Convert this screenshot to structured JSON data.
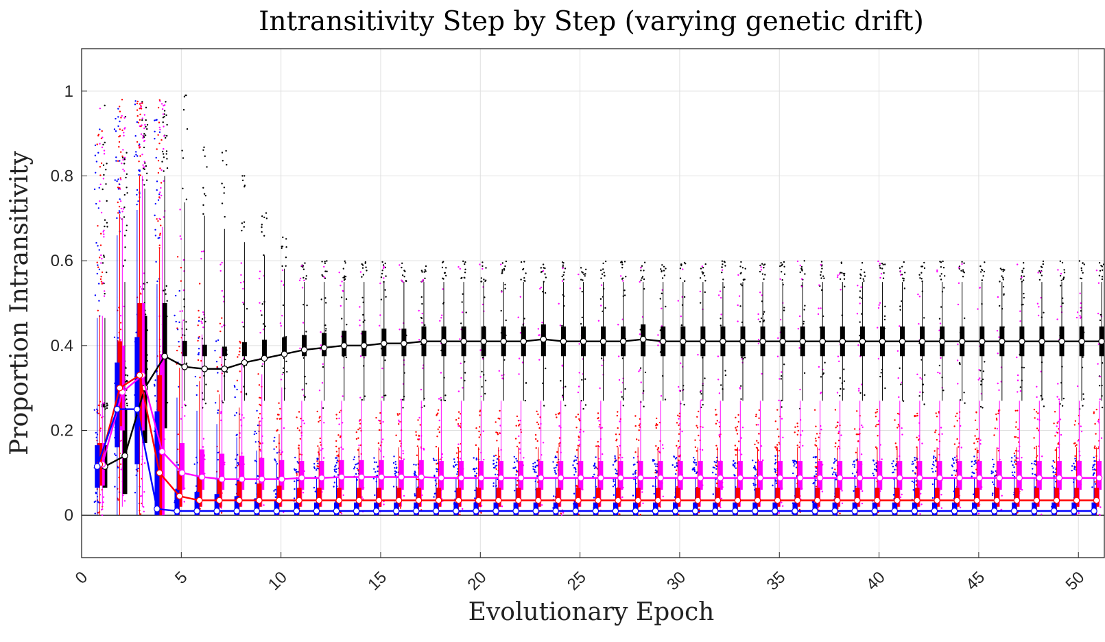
{
  "chart_data": {
    "type": "box",
    "title": "Intransitivity Step by Step (varying genetic drift)",
    "xlabel": "Evolutionary Epoch",
    "ylabel": "Proportion Intransitivity",
    "xlim": [
      0,
      51.3
    ],
    "ylim": [
      -0.1,
      1.1
    ],
    "xticks": [
      0,
      5,
      10,
      15,
      20,
      25,
      30,
      35,
      40,
      45,
      50
    ],
    "yticks": [
      0,
      0.2,
      0.4,
      0.6,
      0.8,
      1
    ],
    "grid": true,
    "legend": "none",
    "colors": {
      "black": "#000000",
      "magenta": "#ff00ff",
      "red": "#ff0000",
      "blue": "#0000ff",
      "grid": "#dfdfdf"
    },
    "series": [
      {
        "color": "#000000",
        "offset": 0.35,
        "x": [
          1,
          2,
          3,
          4,
          5,
          6,
          7,
          8,
          9,
          10,
          11,
          12,
          13,
          14,
          15,
          16,
          17,
          18,
          19,
          20,
          21,
          22,
          23,
          24,
          25,
          26,
          27,
          28,
          29,
          30,
          31,
          32,
          33,
          34,
          35,
          36,
          37,
          38,
          39,
          40,
          41,
          42,
          43,
          44,
          45,
          46,
          47,
          48,
          49,
          50,
          51
        ],
        "median": [
          0.115,
          0.14,
          0.3,
          0.375,
          0.35,
          0.345,
          0.345,
          0.36,
          0.37,
          0.38,
          0.39,
          0.395,
          0.4,
          0.4,
          0.405,
          0.405,
          0.41,
          0.41,
          0.41,
          0.41,
          0.41,
          0.41,
          0.415,
          0.41,
          0.41,
          0.41,
          0.41,
          0.415,
          0.41,
          0.41,
          0.41,
          0.41,
          0.41,
          0.41,
          0.41,
          0.41,
          0.41,
          0.41,
          0.41,
          0.41,
          0.41,
          0.41,
          0.41,
          0.41,
          0.41,
          0.41,
          0.41,
          0.41,
          0.41,
          0.41,
          0.41
        ]
      },
      {
        "color": "#ff00ff",
        "offset": 0.12,
        "x": [
          1,
          2,
          3,
          4,
          5,
          6,
          7,
          8,
          9,
          10,
          11,
          12,
          13,
          14,
          15,
          16,
          17,
          18,
          19,
          20,
          21,
          22,
          23,
          24,
          25,
          26,
          27,
          28,
          29,
          30,
          31,
          32,
          33,
          34,
          35,
          36,
          37,
          38,
          39,
          40,
          41,
          42,
          43,
          44,
          45,
          46,
          47,
          48,
          49,
          50,
          51
        ],
        "median": [
          0.12,
          0.29,
          0.33,
          0.15,
          0.1,
          0.09,
          0.085,
          0.085,
          0.085,
          0.085,
          0.088,
          0.088,
          0.09,
          0.09,
          0.09,
          0.09,
          0.09,
          0.088,
          0.088,
          0.088,
          0.088,
          0.088,
          0.088,
          0.088,
          0.088,
          0.088,
          0.088,
          0.088,
          0.088,
          0.088,
          0.088,
          0.088,
          0.088,
          0.088,
          0.088,
          0.088,
          0.088,
          0.088,
          0.088,
          0.088,
          0.088,
          0.088,
          0.088,
          0.088,
          0.088,
          0.088,
          0.088,
          0.088,
          0.088,
          0.088,
          0.088
        ]
      },
      {
        "color": "#ff0000",
        "offset": -0.12,
        "x": [
          1,
          2,
          3,
          4,
          5,
          6,
          7,
          8,
          9,
          10,
          11,
          12,
          13,
          14,
          15,
          16,
          17,
          18,
          19,
          20,
          21,
          22,
          23,
          24,
          25,
          26,
          27,
          28,
          29,
          30,
          31,
          32,
          33,
          34,
          35,
          36,
          37,
          38,
          39,
          40,
          41,
          42,
          43,
          44,
          45,
          46,
          47,
          48,
          49,
          50,
          51
        ],
        "median": [
          0.12,
          0.3,
          0.33,
          0.1,
          0.045,
          0.035,
          0.035,
          0.035,
          0.035,
          0.035,
          0.035,
          0.035,
          0.035,
          0.035,
          0.035,
          0.035,
          0.035,
          0.035,
          0.035,
          0.035,
          0.035,
          0.035,
          0.035,
          0.035,
          0.035,
          0.035,
          0.035,
          0.035,
          0.035,
          0.035,
          0.035,
          0.035,
          0.035,
          0.035,
          0.035,
          0.035,
          0.035,
          0.035,
          0.035,
          0.035,
          0.035,
          0.035,
          0.035,
          0.035,
          0.035,
          0.035,
          0.035,
          0.035,
          0.035,
          0.035,
          0.035
        ]
      },
      {
        "color": "#0000ff",
        "offset": -0.35,
        "x": [
          1,
          2,
          3,
          4,
          5,
          6,
          7,
          8,
          9,
          10,
          11,
          12,
          13,
          14,
          15,
          16,
          17,
          18,
          19,
          20,
          21,
          22,
          23,
          24,
          25,
          26,
          27,
          28,
          29,
          30,
          31,
          32,
          33,
          34,
          35,
          36,
          37,
          38,
          39,
          40,
          41,
          42,
          43,
          44,
          45,
          46,
          47,
          48,
          49,
          50,
          51
        ],
        "median": [
          0.115,
          0.25,
          0.25,
          0.015,
          0.01,
          0.01,
          0.01,
          0.01,
          0.01,
          0.01,
          0.01,
          0.01,
          0.01,
          0.01,
          0.01,
          0.01,
          0.01,
          0.01,
          0.01,
          0.01,
          0.01,
          0.01,
          0.01,
          0.01,
          0.01,
          0.01,
          0.01,
          0.01,
          0.01,
          0.01,
          0.01,
          0.01,
          0.01,
          0.01,
          0.01,
          0.01,
          0.01,
          0.01,
          0.01,
          0.01,
          0.01,
          0.01,
          0.01,
          0.01,
          0.01,
          0.01,
          0.01,
          0.01,
          0.01,
          0.01,
          0.01
        ]
      }
    ],
    "box_stats_steady_state": [
      {
        "color": "#000000",
        "q1": 0.375,
        "q3": 0.445,
        "whisker_low": 0.27,
        "whisker_high": 0.55,
        "scatter_range": [
          0.25,
          0.57
        ]
      },
      {
        "color": "#ff00ff",
        "q1": 0.06,
        "q3": 0.14,
        "whisker_low": 0.02,
        "whisker_high": 0.27,
        "scatter_range": [
          0.0,
          0.6
        ]
      },
      {
        "color": "#ff0000",
        "q1": 0.02,
        "q3": 0.08,
        "whisker_low": 0.0,
        "whisker_high": 0.16,
        "scatter_range": [
          0.0,
          0.25
        ]
      },
      {
        "color": "#0000ff",
        "q1": 0.0,
        "q3": 0.04,
        "whisker_low": 0.0,
        "whisker_high": 0.09,
        "scatter_range": [
          0.0,
          0.12
        ]
      }
    ]
  }
}
